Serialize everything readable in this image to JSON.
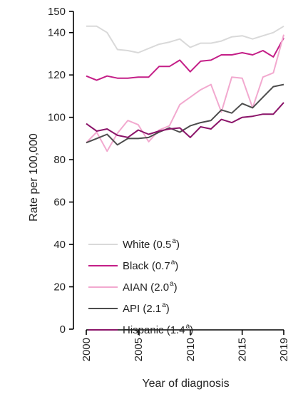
{
  "chart_data": {
    "type": "line",
    "xlabel": "Year of diagnosis",
    "ylabel": "Rate per 100,000",
    "xlim": [
      2000,
      2019
    ],
    "ylim": [
      0,
      150
    ],
    "x_ticks": [
      2000,
      2005,
      2010,
      2015,
      2019
    ],
    "y_ticks": [
      0,
      20,
      40,
      60,
      80,
      100,
      120,
      140,
      150
    ],
    "grid": false,
    "legend_position": "bottom-left",
    "x": [
      2000,
      2001,
      2002,
      2003,
      2004,
      2005,
      2006,
      2007,
      2008,
      2009,
      2010,
      2011,
      2012,
      2013,
      2014,
      2015,
      2016,
      2017,
      2018,
      2019
    ],
    "series": [
      {
        "name": "White",
        "legend_value": "0.5",
        "legend_sup": "a",
        "color": "#d9d9d9",
        "values": [
          143,
          143,
          140,
          132,
          131.5,
          130.5,
          132.5,
          134.5,
          135.5,
          137,
          133,
          135,
          135,
          136,
          138,
          138.5,
          137,
          138.5,
          140,
          143
        ]
      },
      {
        "name": "Black",
        "legend_value": "0.7",
        "legend_sup": "a",
        "color": "#c41e87",
        "values": [
          119.5,
          117.5,
          119.5,
          118.5,
          118.5,
          119,
          119,
          124,
          124,
          127,
          121.5,
          126.5,
          127,
          129.5,
          129.5,
          130.5,
          129.5,
          131.5,
          128.5,
          137.5
        ]
      },
      {
        "name": "AIAN",
        "legend_value": "2.0",
        "legend_sup": "a",
        "color": "#f2a9cf",
        "values": [
          88,
          93,
          84,
          92.5,
          98.5,
          96.5,
          88.5,
          94,
          96,
          106,
          109.5,
          113,
          115.5,
          102.5,
          119,
          118.5,
          104.5,
          119,
          121,
          139
        ]
      },
      {
        "name": "API",
        "legend_value": "2.1",
        "legend_sup": "a",
        "color": "#4d4d4d",
        "values": [
          88,
          90,
          92,
          87,
          90,
          90,
          90.5,
          93,
          95,
          93,
          96,
          97.5,
          98.5,
          103.5,
          102,
          106.5,
          104.5,
          109.5,
          114.5,
          115.5
        ]
      },
      {
        "name": "Hispanic",
        "legend_value": "1.4",
        "legend_sup": "a",
        "color": "#8b1469",
        "values": [
          97,
          93.5,
          94.5,
          91.5,
          90.5,
          94,
          92,
          93.5,
          94.5,
          95,
          90.5,
          95.5,
          94.5,
          99,
          97.5,
          100,
          100.5,
          101.5,
          101.5,
          107
        ]
      }
    ]
  }
}
